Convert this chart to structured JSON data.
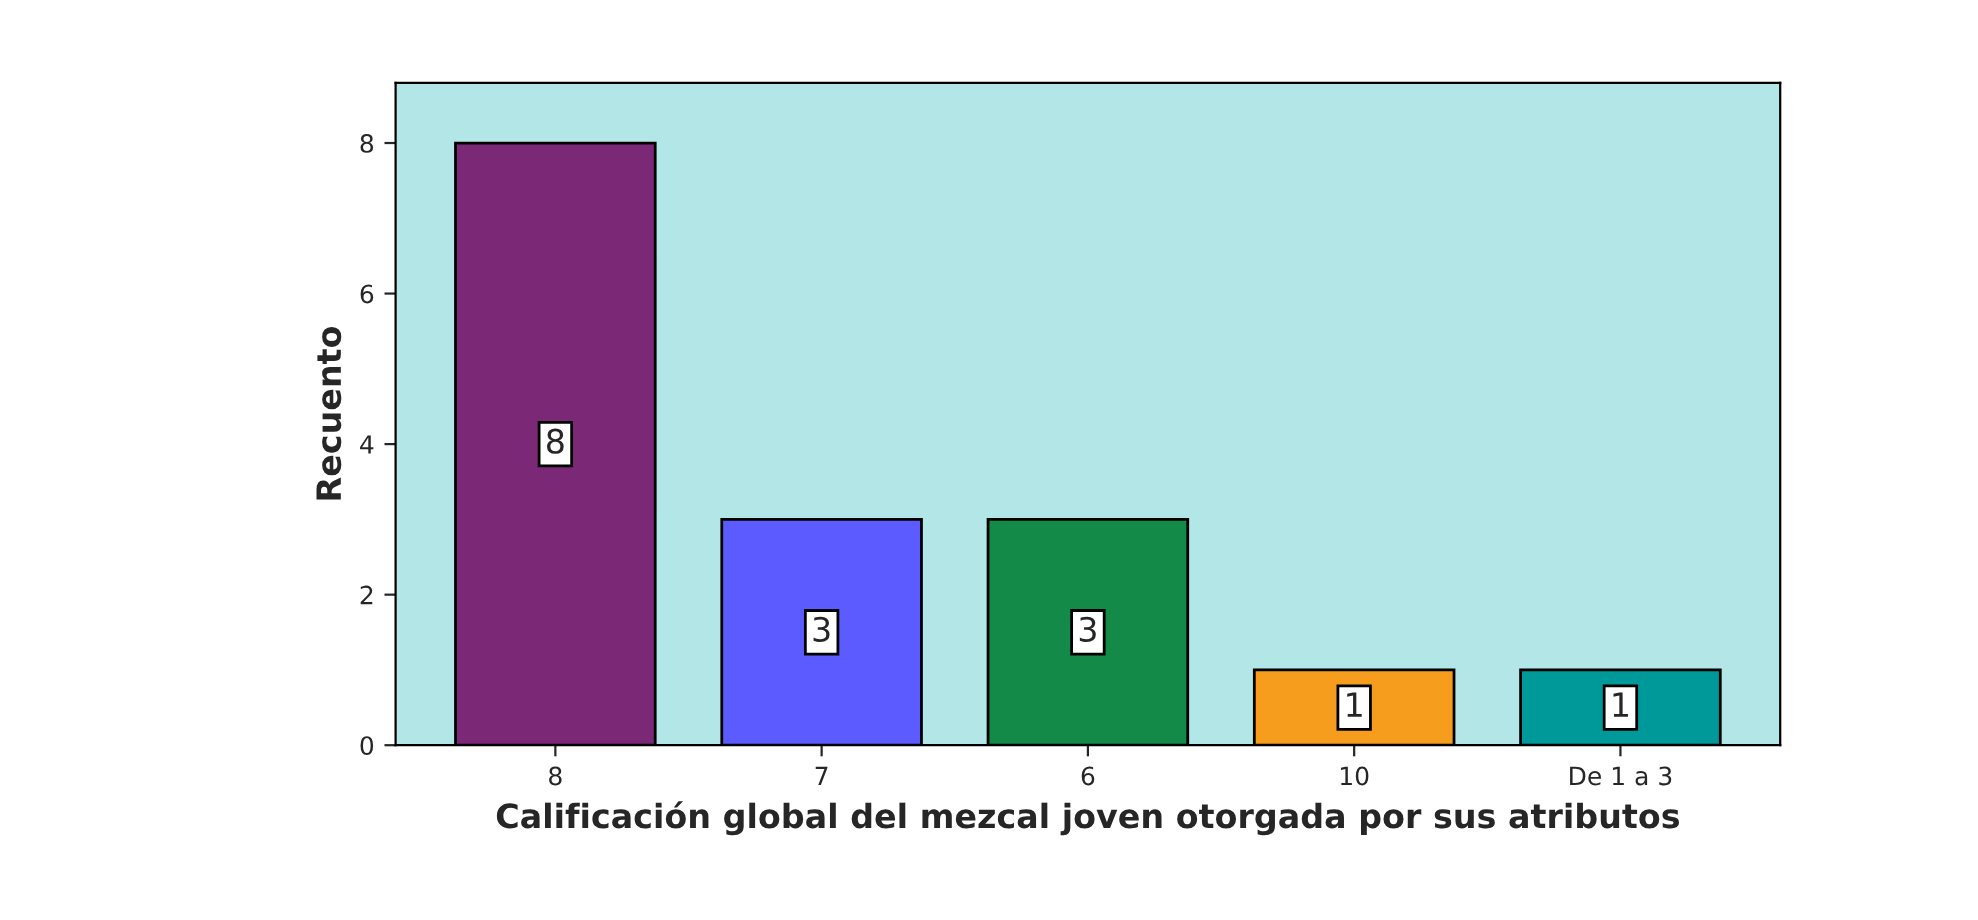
{
  "chart_data": {
    "type": "bar",
    "xlabel": "Calificación global del mezcal joven otorgada por sus atributos",
    "ylabel": "Recuento",
    "categories": [
      "8",
      "7",
      "6",
      "10",
      "De 1 a 3"
    ],
    "values": [
      8,
      3,
      3,
      1,
      1
    ],
    "colors": [
      "#7b2877",
      "#5b5bff",
      "#138a48",
      "#f79d1e",
      "#009999"
    ],
    "ylim": [
      0,
      8.8
    ],
    "yticks": [
      0,
      2,
      4,
      6,
      8
    ],
    "data_labels": true,
    "grid": false,
    "legend": false
  }
}
